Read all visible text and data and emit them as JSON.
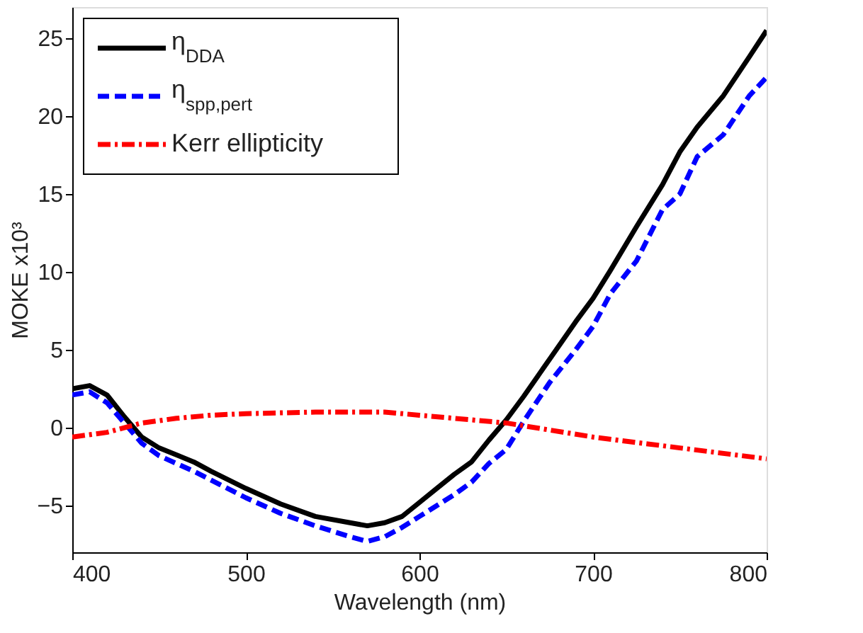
{
  "chart_data": {
    "type": "line",
    "xlabel": "Wavelength  (nm)",
    "ylabel": "MOKE  x10³",
    "xlim": [
      400,
      800
    ],
    "ylim": [
      -8,
      27
    ],
    "xticks": [
      400,
      500,
      600,
      700,
      800
    ],
    "yticks": [
      -5,
      0,
      5,
      10,
      15,
      20,
      25
    ],
    "grid": false,
    "legend": "top left",
    "marker": "none",
    "series": [
      {
        "name": "η$_{DDA}$",
        "color": "#000000",
        "line_style": "solid",
        "x": [
          400,
          410,
          420,
          430,
          440,
          450,
          470,
          480,
          500,
          520,
          540,
          560,
          570,
          580,
          590,
          600,
          610,
          620,
          630,
          640,
          650,
          660,
          675,
          690,
          700,
          710,
          725,
          740,
          750,
          760,
          775,
          790,
          800
        ],
        "values": [
          2.5,
          2.7,
          2.1,
          0.7,
          -0.6,
          -1.3,
          -2.2,
          -2.8,
          -3.9,
          -4.9,
          -5.7,
          -6.1,
          -6.3,
          -6.1,
          -5.7,
          -4.8,
          -3.9,
          -3.0,
          -2.2,
          -0.8,
          0.5,
          2.0,
          4.4,
          6.8,
          8.3,
          10.1,
          12.9,
          15.6,
          17.7,
          19.3,
          21.3,
          23.8,
          25.5
        ]
      },
      {
        "name": "η$_{spp,pert}$",
        "color": "#0000ff",
        "line_style": "dashed",
        "x": [
          400,
          410,
          420,
          430,
          440,
          450,
          470,
          500,
          520,
          540,
          560,
          570,
          580,
          590,
          600,
          620,
          630,
          640,
          650,
          660,
          675,
          690,
          700,
          710,
          725,
          740,
          750,
          760,
          775,
          790,
          800
        ],
        "values": [
          2.1,
          2.3,
          1.6,
          0.3,
          -1.0,
          -1.8,
          -2.8,
          -4.5,
          -5.5,
          -6.3,
          -7.0,
          -7.3,
          -7.0,
          -6.4,
          -5.7,
          -4.3,
          -3.5,
          -2.3,
          -1.4,
          0.4,
          2.9,
          5.0,
          6.5,
          8.6,
          10.7,
          14.0,
          15.0,
          17.4,
          18.8,
          21.3,
          22.5
        ]
      },
      {
        "name": "Kerr ellipticity",
        "color": "#ff0000",
        "line_style": "dashdot",
        "x": [
          400,
          420,
          440,
          460,
          480,
          500,
          540,
          560,
          580,
          600,
          620,
          650,
          700,
          750,
          800
        ],
        "values": [
          -0.6,
          -0.3,
          0.3,
          0.6,
          0.8,
          0.9,
          1.0,
          1.0,
          1.0,
          0.8,
          0.6,
          0.3,
          -0.6,
          -1.3,
          -2.0
        ]
      }
    ]
  }
}
